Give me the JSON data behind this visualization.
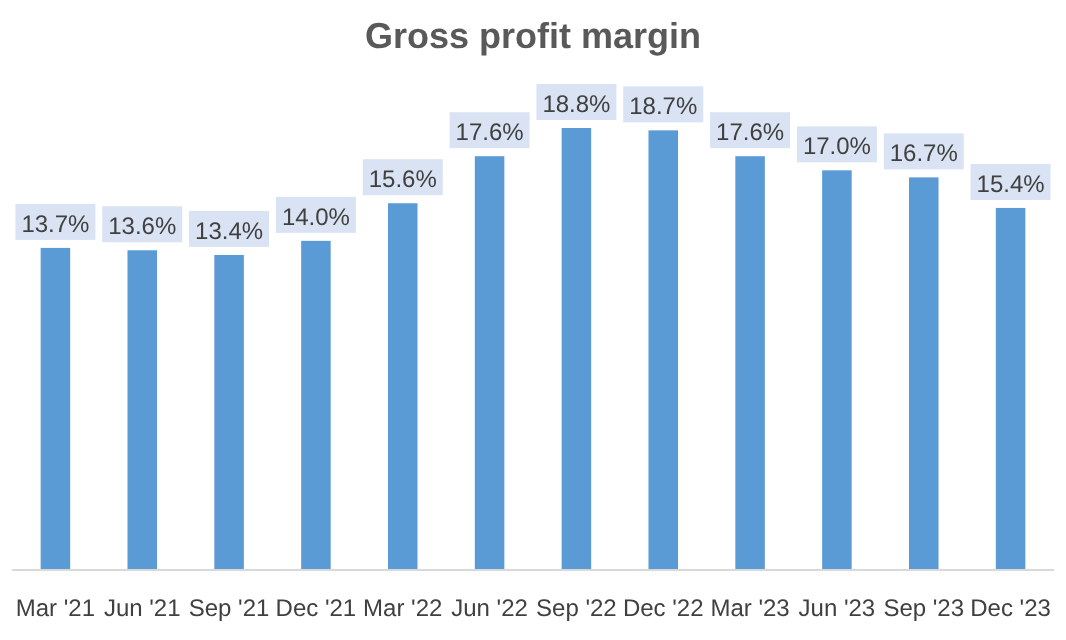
{
  "chart_data": {
    "type": "bar",
    "title": "Gross profit margin",
    "categories": [
      "Mar '21",
      "Jun '21",
      "Sep '21",
      "Dec '21",
      "Mar '22",
      "Jun '22",
      "Sep '22",
      "Dec '22",
      "Mar '23",
      "Jun '23",
      "Sep '23",
      "Dec '23"
    ],
    "values": [
      13.7,
      13.6,
      13.4,
      14.0,
      15.6,
      17.6,
      18.8,
      18.7,
      17.6,
      17.0,
      16.7,
      15.4
    ],
    "value_labels": [
      "13.7%",
      "13.6%",
      "13.4%",
      "14.0%",
      "15.6%",
      "17.6%",
      "18.8%",
      "18.7%",
      "17.6%",
      "17.0%",
      "16.7%",
      "15.4%"
    ],
    "color": "#5b9bd5",
    "tick_labels": "x"
  }
}
